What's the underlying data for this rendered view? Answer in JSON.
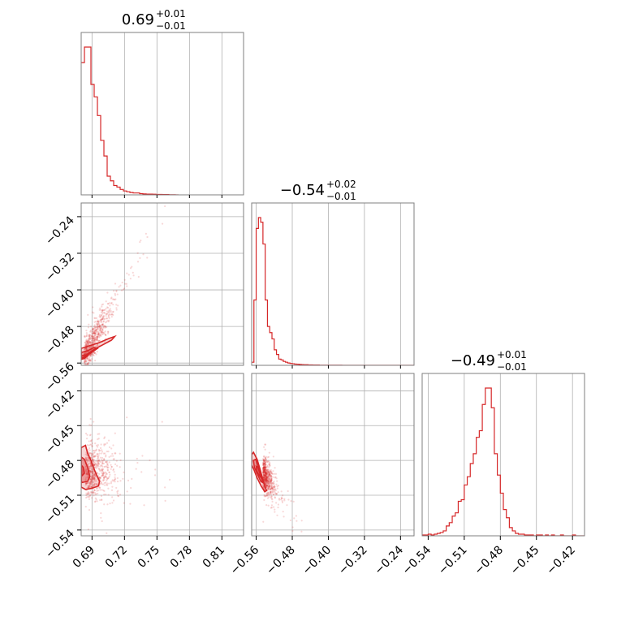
{
  "chart_data": {
    "type": "corner",
    "color": "#d62728",
    "grid": true,
    "panels": [
      {
        "name": "hist-p0",
        "type": "histogram",
        "row": 0,
        "col": 0,
        "title": {
          "median": "0.69",
          "plus": "+0.01",
          "minus": "−0.01"
        },
        "xlim": [
          0.68,
          0.83
        ],
        "xticks": [
          0.69,
          0.72,
          0.75,
          0.78,
          0.81
        ],
        "bins_x": [
          0.68,
          0.683,
          0.686,
          0.689,
          0.692,
          0.695,
          0.698,
          0.701,
          0.704,
          0.707,
          0.71,
          0.713,
          0.716,
          0.719,
          0.722,
          0.725,
          0.728,
          0.731,
          0.734,
          0.737,
          0.74,
          0.743,
          0.746,
          0.749,
          0.752,
          0.755,
          0.758,
          0.761,
          0.764,
          0.767,
          0.77
        ],
        "counts": [
          0.85,
          0.95,
          0.95,
          0.71,
          0.63,
          0.51,
          0.35,
          0.25,
          0.12,
          0.09,
          0.06,
          0.05,
          0.035,
          0.025,
          0.02,
          0.015,
          0.012,
          0.012,
          0.008,
          0.006,
          0.005,
          0.005,
          0.004,
          0.003,
          0.003,
          0.002,
          0.002,
          0.001,
          0.001,
          0.0
        ]
      },
      {
        "name": "hist-p1",
        "type": "histogram",
        "row": 1,
        "col": 1,
        "title": {
          "median": "−0.54",
          "plus": "+0.02",
          "minus": "−0.01"
        },
        "xlim": [
          -0.57,
          -0.21
        ],
        "xticks": [
          -0.56,
          -0.48,
          -0.4,
          -0.32,
          -0.24
        ],
        "bins_x": [
          -0.57,
          -0.565,
          -0.56,
          -0.555,
          -0.55,
          -0.545,
          -0.54,
          -0.535,
          -0.53,
          -0.525,
          -0.52,
          -0.515,
          -0.51,
          -0.505,
          -0.5,
          -0.495,
          -0.49,
          -0.485,
          -0.48,
          -0.475,
          -0.47,
          -0.465,
          -0.46,
          -0.455,
          -0.45,
          -0.445,
          -0.44,
          -0.435,
          -0.43,
          -0.425,
          -0.42,
          -0.415,
          -0.41,
          -0.405,
          -0.4,
          -0.395,
          -0.39,
          -0.385,
          -0.38,
          -0.375,
          -0.37,
          -0.365,
          -0.36,
          -0.355,
          -0.35,
          -0.345,
          -0.34,
          -0.335,
          -0.33,
          -0.325,
          -0.32,
          -0.315,
          -0.31,
          -0.305,
          -0.3,
          -0.295,
          -0.29,
          -0.285,
          -0.28,
          -0.275,
          -0.27,
          -0.265,
          -0.26,
          -0.255,
          -0.25,
          -0.245,
          -0.24,
          -0.235,
          -0.23,
          -0.225,
          -0.22,
          -0.215,
          -0.21
        ],
        "counts": [
          0.02,
          0.42,
          0.88,
          0.95,
          0.92,
          0.78,
          0.42,
          0.25,
          0.21,
          0.17,
          0.1,
          0.07,
          0.04,
          0.035,
          0.025,
          0.02,
          0.015,
          0.012,
          0.01,
          0.008,
          0.007,
          0.006,
          0.005,
          0.004,
          0.004,
          0.003,
          0.003,
          0.002,
          0.002,
          0.002,
          0.001,
          0.001,
          0.001,
          0.001,
          0.001,
          0.001,
          0.001,
          0.001,
          0.001,
          0.001,
          0.0,
          0.0,
          0.0,
          0.0,
          0.0,
          0.0,
          0.0,
          0.0,
          0.0,
          0.0,
          0.0,
          0.0,
          0.0,
          0.0,
          0.0,
          0.0,
          0.0,
          0.0,
          0.0,
          0.0,
          0.0,
          0.0,
          0.0,
          0.0,
          0.0,
          0.0,
          0.0,
          0.0,
          0.0,
          0.0,
          0.0,
          0.0
        ]
      },
      {
        "name": "hist-p2",
        "type": "histogram",
        "row": 2,
        "col": 2,
        "title": {
          "median": "−0.49",
          "plus": "+0.01",
          "minus": "−0.01"
        },
        "xlim": [
          -0.545,
          -0.41
        ],
        "xticks": [
          -0.54,
          -0.51,
          -0.48,
          -0.45,
          -0.42
        ],
        "bins_x": [
          -0.545,
          -0.5425,
          -0.54,
          -0.5375,
          -0.535,
          -0.5325,
          -0.53,
          -0.5275,
          -0.525,
          -0.5225,
          -0.52,
          -0.5175,
          -0.515,
          -0.5125,
          -0.51,
          -0.5075,
          -0.505,
          -0.5025,
          -0.5,
          -0.4975,
          -0.495,
          -0.4925,
          -0.49,
          -0.4875,
          -0.485,
          -0.4825,
          -0.48,
          -0.4775,
          -0.475,
          -0.4725,
          -0.47,
          -0.4675,
          -0.465,
          -0.4625,
          -0.46,
          -0.4575,
          -0.455,
          -0.4525,
          -0.45,
          -0.4475,
          -0.445,
          -0.4425,
          -0.44,
          -0.4375,
          -0.435,
          -0.4325,
          -0.43,
          -0.4275,
          -0.425,
          -0.4225,
          -0.42,
          -0.4175,
          -0.415,
          -0.4125,
          -0.41
        ],
        "counts": [
          0.005,
          0.005,
          0.01,
          0.005,
          0.01,
          0.015,
          0.02,
          0.03,
          0.06,
          0.08,
          0.12,
          0.14,
          0.21,
          0.22,
          0.31,
          0.36,
          0.44,
          0.5,
          0.6,
          0.64,
          0.8,
          0.9,
          0.9,
          0.78,
          0.5,
          0.37,
          0.26,
          0.16,
          0.11,
          0.05,
          0.03,
          0.015,
          0.01,
          0.01,
          0.005,
          0.005,
          0.005,
          0.0,
          0.005,
          0.005,
          0.0,
          0.005,
          0.0,
          0.005,
          0.0,
          0.0,
          0.005,
          0.0,
          0.0,
          0.0,
          0.005,
          0.0,
          0.0,
          0.0
        ]
      },
      {
        "name": "scatter-p0-p1",
        "type": "density2d",
        "row": 1,
        "col": 0,
        "xlim": [
          0.68,
          0.83
        ],
        "ylim": [
          -0.565,
          -0.21
        ],
        "yticks": [
          -0.24,
          -0.32,
          -0.4,
          -0.48,
          -0.56
        ],
        "center": [
          0.683,
          -0.545
        ],
        "slope": 4.2,
        "spread": [
          0.012,
          0.018
        ],
        "contours": [
          [
            [
              0.68,
              -0.528
            ],
            [
              0.688,
              -0.522
            ],
            [
              0.697,
              -0.515
            ],
            [
              0.706,
              -0.506
            ],
            [
              0.711,
              -0.502
            ],
            [
              0.708,
              -0.51
            ],
            [
              0.7,
              -0.52
            ],
            [
              0.692,
              -0.53
            ],
            [
              0.686,
              -0.54
            ],
            [
              0.682,
              -0.548
            ],
            [
              0.68,
              -0.55
            ]
          ],
          [
            [
              0.68,
              -0.537
            ],
            [
              0.686,
              -0.533
            ],
            [
              0.692,
              -0.526
            ],
            [
              0.695,
              -0.528
            ],
            [
              0.69,
              -0.536
            ],
            [
              0.685,
              -0.544
            ],
            [
              0.681,
              -0.55
            ],
            [
              0.68,
              -0.549
            ]
          ],
          [
            [
              0.68,
              -0.545
            ],
            [
              0.683,
              -0.542
            ],
            [
              0.686,
              -0.544
            ],
            [
              0.683,
              -0.55
            ],
            [
              0.68,
              -0.552
            ]
          ]
        ]
      },
      {
        "name": "scatter-p0-p2",
        "type": "density2d",
        "row": 2,
        "col": 0,
        "xlim": [
          0.68,
          0.83
        ],
        "ylim": [
          -0.545,
          -0.405
        ],
        "yticks": [
          -0.42,
          -0.45,
          -0.48,
          -0.51,
          -0.54
        ],
        "center": [
          0.684,
          -0.49
        ],
        "slope": 0.0,
        "spread": [
          0.012,
          0.012
        ],
        "contours": [
          [
            [
              0.68,
              -0.469
            ],
            [
              0.684,
              -0.467
            ],
            [
              0.686,
              -0.474
            ],
            [
              0.689,
              -0.48
            ],
            [
              0.693,
              -0.49
            ],
            [
              0.697,
              -0.498
            ],
            [
              0.696,
              -0.502
            ],
            [
              0.69,
              -0.504
            ],
            [
              0.684,
              -0.505
            ],
            [
              0.68,
              -0.503
            ]
          ],
          [
            [
              0.68,
              -0.477
            ],
            [
              0.683,
              -0.479
            ],
            [
              0.686,
              -0.486
            ],
            [
              0.688,
              -0.494
            ],
            [
              0.686,
              -0.498
            ],
            [
              0.681,
              -0.499
            ],
            [
              0.68,
              -0.498
            ]
          ],
          [
            [
              0.68,
              -0.484
            ],
            [
              0.682,
              -0.486
            ],
            [
              0.683,
              -0.491
            ],
            [
              0.681,
              -0.493
            ],
            [
              0.68,
              -0.492
            ]
          ]
        ]
      },
      {
        "name": "scatter-p1-p2",
        "type": "density2d",
        "row": 2,
        "col": 1,
        "xlim": [
          -0.57,
          -0.21
        ],
        "ylim": [
          -0.545,
          -0.405
        ],
        "center": [
          -0.545,
          -0.49
        ],
        "slope": -0.55,
        "spread": [
          0.012,
          0.007
        ],
        "contours": [
          [
            [
              -0.57,
              -0.475
            ],
            [
              -0.566,
              -0.473
            ],
            [
              -0.558,
              -0.479
            ],
            [
              -0.551,
              -0.488
            ],
            [
              -0.545,
              -0.497
            ],
            [
              -0.54,
              -0.503
            ],
            [
              -0.537,
              -0.506
            ],
            [
              -0.541,
              -0.507
            ],
            [
              -0.549,
              -0.502
            ],
            [
              -0.558,
              -0.495
            ],
            [
              -0.565,
              -0.488
            ],
            [
              -0.57,
              -0.484
            ]
          ],
          [
            [
              -0.566,
              -0.48
            ],
            [
              -0.561,
              -0.479
            ],
            [
              -0.555,
              -0.486
            ],
            [
              -0.549,
              -0.494
            ],
            [
              -0.546,
              -0.499
            ],
            [
              -0.55,
              -0.498
            ],
            [
              -0.557,
              -0.492
            ],
            [
              -0.564,
              -0.486
            ]
          ],
          [
            [
              -0.56,
              -0.485
            ],
            [
              -0.556,
              -0.486
            ],
            [
              -0.552,
              -0.491
            ],
            [
              -0.551,
              -0.494
            ],
            [
              -0.555,
              -0.492
            ],
            [
              -0.559,
              -0.489
            ]
          ]
        ]
      }
    ],
    "bottom_xticks": [
      {
        "col": 0,
        "values": [
          0.69,
          0.72,
          0.75,
          0.78,
          0.81
        ],
        "labels": [
          "0.69",
          "0.72",
          "0.75",
          "0.78",
          "0.81"
        ]
      },
      {
        "col": 1,
        "values": [
          -0.56,
          -0.48,
          -0.4,
          -0.32,
          -0.24
        ],
        "labels": [
          "−0.56",
          "−0.48",
          "−0.40",
          "−0.32",
          "−0.24"
        ]
      },
      {
        "col": 2,
        "values": [
          -0.54,
          -0.51,
          -0.48,
          -0.45,
          -0.42
        ],
        "labels": [
          "−0.54",
          "−0.51",
          "−0.48",
          "−0.45",
          "−0.42"
        ]
      }
    ],
    "left_yticks": [
      {
        "row": 1,
        "values": [
          -0.24,
          -0.32,
          -0.4,
          -0.48,
          -0.56
        ],
        "labels": [
          "−0.24",
          "−0.32",
          "−0.40",
          "−0.48",
          "−0.56"
        ]
      },
      {
        "row": 2,
        "values": [
          -0.42,
          -0.45,
          -0.48,
          -0.51,
          -0.54
        ],
        "labels": [
          "−0.42",
          "−0.45",
          "−0.48",
          "−0.51",
          "−0.54"
        ]
      }
    ]
  }
}
